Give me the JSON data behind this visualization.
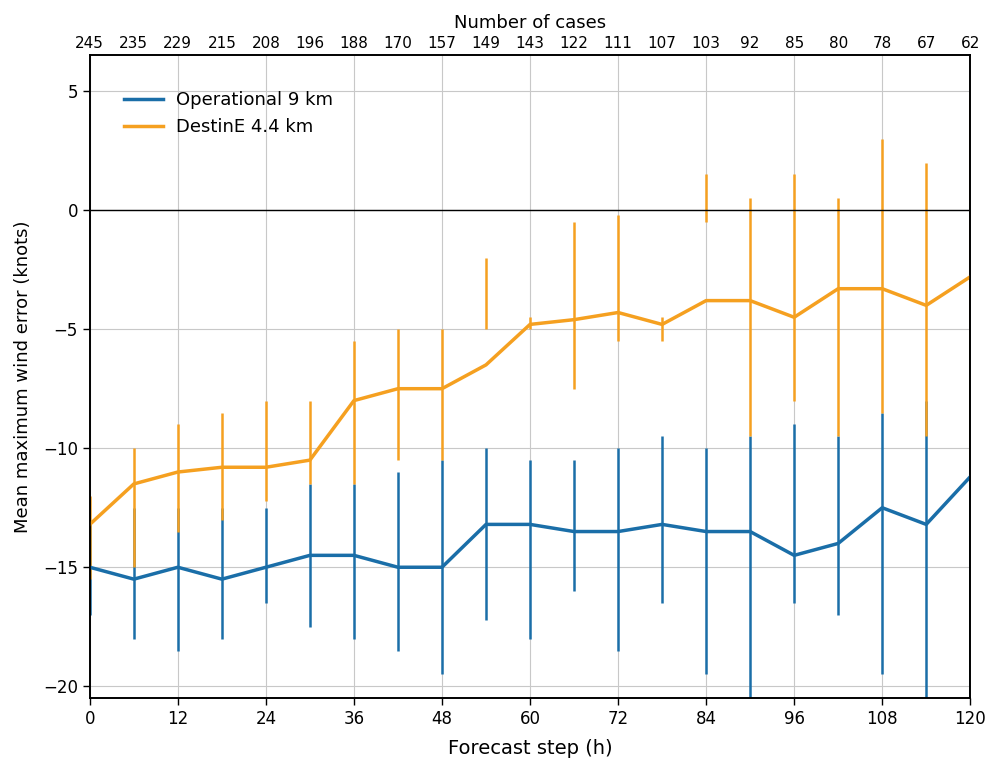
{
  "title_top": "Number of cases",
  "xlabel": "Forecast step (h)",
  "ylabel": "Mean maximum wind error (knots)",
  "top_xtick_labels": [
    "245",
    "235",
    "229",
    "215",
    "208",
    "196",
    "188",
    "170",
    "157",
    "149",
    "143",
    "122",
    "111",
    "107",
    "103",
    "92",
    "85",
    "80",
    "78",
    "67",
    "62"
  ],
  "x_values": [
    0,
    6,
    12,
    18,
    24,
    30,
    36,
    42,
    48,
    54,
    60,
    66,
    72,
    78,
    84,
    90,
    96,
    102,
    108,
    114,
    120
  ],
  "blue_mean": [
    -15.0,
    -15.5,
    -15.0,
    -15.5,
    -15.0,
    -14.5,
    -14.5,
    -15.0,
    -15.0,
    -13.2,
    -13.2,
    -13.5,
    -13.5,
    -13.2,
    -13.5,
    -13.5,
    -14.5,
    -14.0,
    -12.5,
    -13.2,
    -11.2
  ],
  "blue_err_low": [
    -17.0,
    -18.0,
    -18.5,
    -18.0,
    -16.5,
    -17.5,
    -18.0,
    -18.5,
    -19.5,
    -17.2,
    -18.0,
    -16.0,
    -18.5,
    -16.5,
    -19.5,
    -20.5,
    -16.5,
    -17.0,
    -19.5,
    -20.5,
    -20.5
  ],
  "blue_err_high": [
    -13.0,
    -12.5,
    -12.5,
    -12.5,
    -12.5,
    -11.5,
    -11.5,
    -11.0,
    -10.5,
    -10.0,
    -10.5,
    -10.5,
    -10.0,
    -9.5,
    -10.0,
    -9.5,
    -9.0,
    -9.5,
    -8.5,
    -8.0,
    -5.5
  ],
  "orange_mean": [
    -13.2,
    -11.5,
    -11.0,
    -10.8,
    -10.8,
    -10.5,
    -8.0,
    -7.5,
    -7.5,
    -6.5,
    -4.8,
    -4.6,
    -4.3,
    -4.8,
    -3.8,
    -3.8,
    -4.5,
    -3.3,
    -3.3,
    -4.0,
    -2.8
  ],
  "orange_err_low": [
    -15.5,
    -15.0,
    -13.5,
    -13.0,
    -12.2,
    -11.5,
    -11.5,
    -10.5,
    -10.5,
    -5.0,
    -5.0,
    -7.5,
    -5.5,
    -5.5,
    -0.5,
    -9.5,
    -8.0,
    -9.5,
    -8.5,
    -9.5,
    -10.5
  ],
  "orange_err_high": [
    -12.0,
    -10.0,
    -9.0,
    -8.5,
    -8.0,
    -8.0,
    -5.5,
    -5.0,
    -5.0,
    -2.0,
    -4.5,
    -0.5,
    -0.2,
    -4.5,
    1.5,
    0.5,
    1.5,
    0.5,
    3.0,
    2.0,
    4.7
  ],
  "blue_color": "#1a6ea8",
  "orange_color": "#f5a020",
  "legend_labels": [
    "Operational 9 km",
    "DestinE 4.4 km"
  ],
  "ylim": [
    -20.5,
    6.5
  ],
  "yticks": [
    -20,
    -15,
    -10,
    -5,
    0,
    5
  ],
  "xticks": [
    0,
    12,
    24,
    36,
    48,
    60,
    72,
    84,
    96,
    108,
    120
  ],
  "xlim": [
    0,
    120
  ],
  "grid_color": "#c8c8c8",
  "zero_line_color": "#000000",
  "background_color": "#ffffff",
  "line_width": 2.5,
  "error_line_width": 1.8,
  "font_family": "DejaVu Sans"
}
